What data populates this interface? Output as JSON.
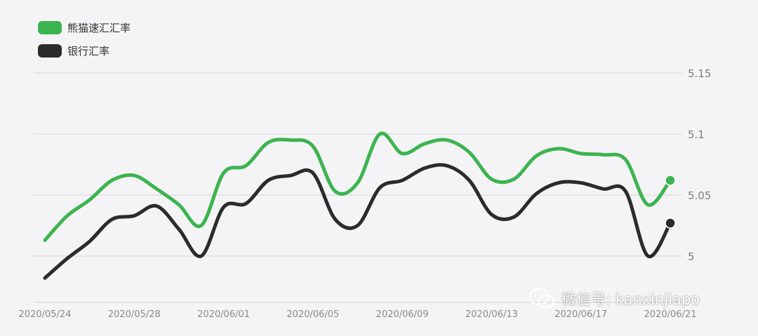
{
  "chart_data": {
    "type": "line",
    "x": [
      "2020/05/24",
      "2020/05/25",
      "2020/05/26",
      "2020/05/27",
      "2020/05/28",
      "2020/05/29",
      "2020/05/30",
      "2020/05/31",
      "2020/06/01",
      "2020/06/02",
      "2020/06/03",
      "2020/06/04",
      "2020/06/05",
      "2020/06/06",
      "2020/06/07",
      "2020/06/08",
      "2020/06/09",
      "2020/06/10",
      "2020/06/11",
      "2020/06/12",
      "2020/06/13",
      "2020/06/14",
      "2020/06/15",
      "2020/06/16",
      "2020/06/17",
      "2020/06/18",
      "2020/06/19",
      "2020/06/20",
      "2020/06/21"
    ],
    "x_tick_labels": [
      "2020/05/24",
      "2020/05/28",
      "2020/06/01",
      "2020/06/05",
      "2020/06/09",
      "2020/06/13",
      "2020/06/17",
      "2020/06/21"
    ],
    "series": [
      {
        "name": "熊猫速汇汇率",
        "color": "#3cb44f",
        "values": [
          5.013,
          5.033,
          5.046,
          5.062,
          5.066,
          5.055,
          5.042,
          5.025,
          5.068,
          5.074,
          5.093,
          5.095,
          5.09,
          5.053,
          5.06,
          5.1,
          5.084,
          5.092,
          5.095,
          5.085,
          5.063,
          5.063,
          5.082,
          5.088,
          5.084,
          5.083,
          5.079,
          5.042,
          5.062
        ]
      },
      {
        "name": "银行汇率",
        "color": "#2b2b2b",
        "values": [
          4.982,
          4.998,
          5.012,
          5.03,
          5.033,
          5.041,
          5.022,
          5.0,
          5.04,
          5.043,
          5.062,
          5.066,
          5.068,
          5.03,
          5.025,
          5.056,
          5.062,
          5.072,
          5.074,
          5.062,
          5.034,
          5.032,
          5.051,
          5.06,
          5.06,
          5.055,
          5.053,
          5.0,
          5.027
        ]
      }
    ],
    "y_tick_labels": [
      "5",
      "5.05",
      "5.1",
      "5.15"
    ],
    "y_ticks": [
      5.0,
      5.05,
      5.1,
      5.15
    ],
    "ylim": [
      4.98,
      5.155
    ],
    "grid": true,
    "legend_position": "top-left"
  },
  "legend": {
    "items": [
      {
        "label": "熊猫速汇汇率",
        "color": "#3cb44f"
      },
      {
        "label": "银行汇率",
        "color": "#2b2b2b"
      }
    ]
  },
  "watermark": {
    "text": "微信号: kanxinjiapo"
  }
}
